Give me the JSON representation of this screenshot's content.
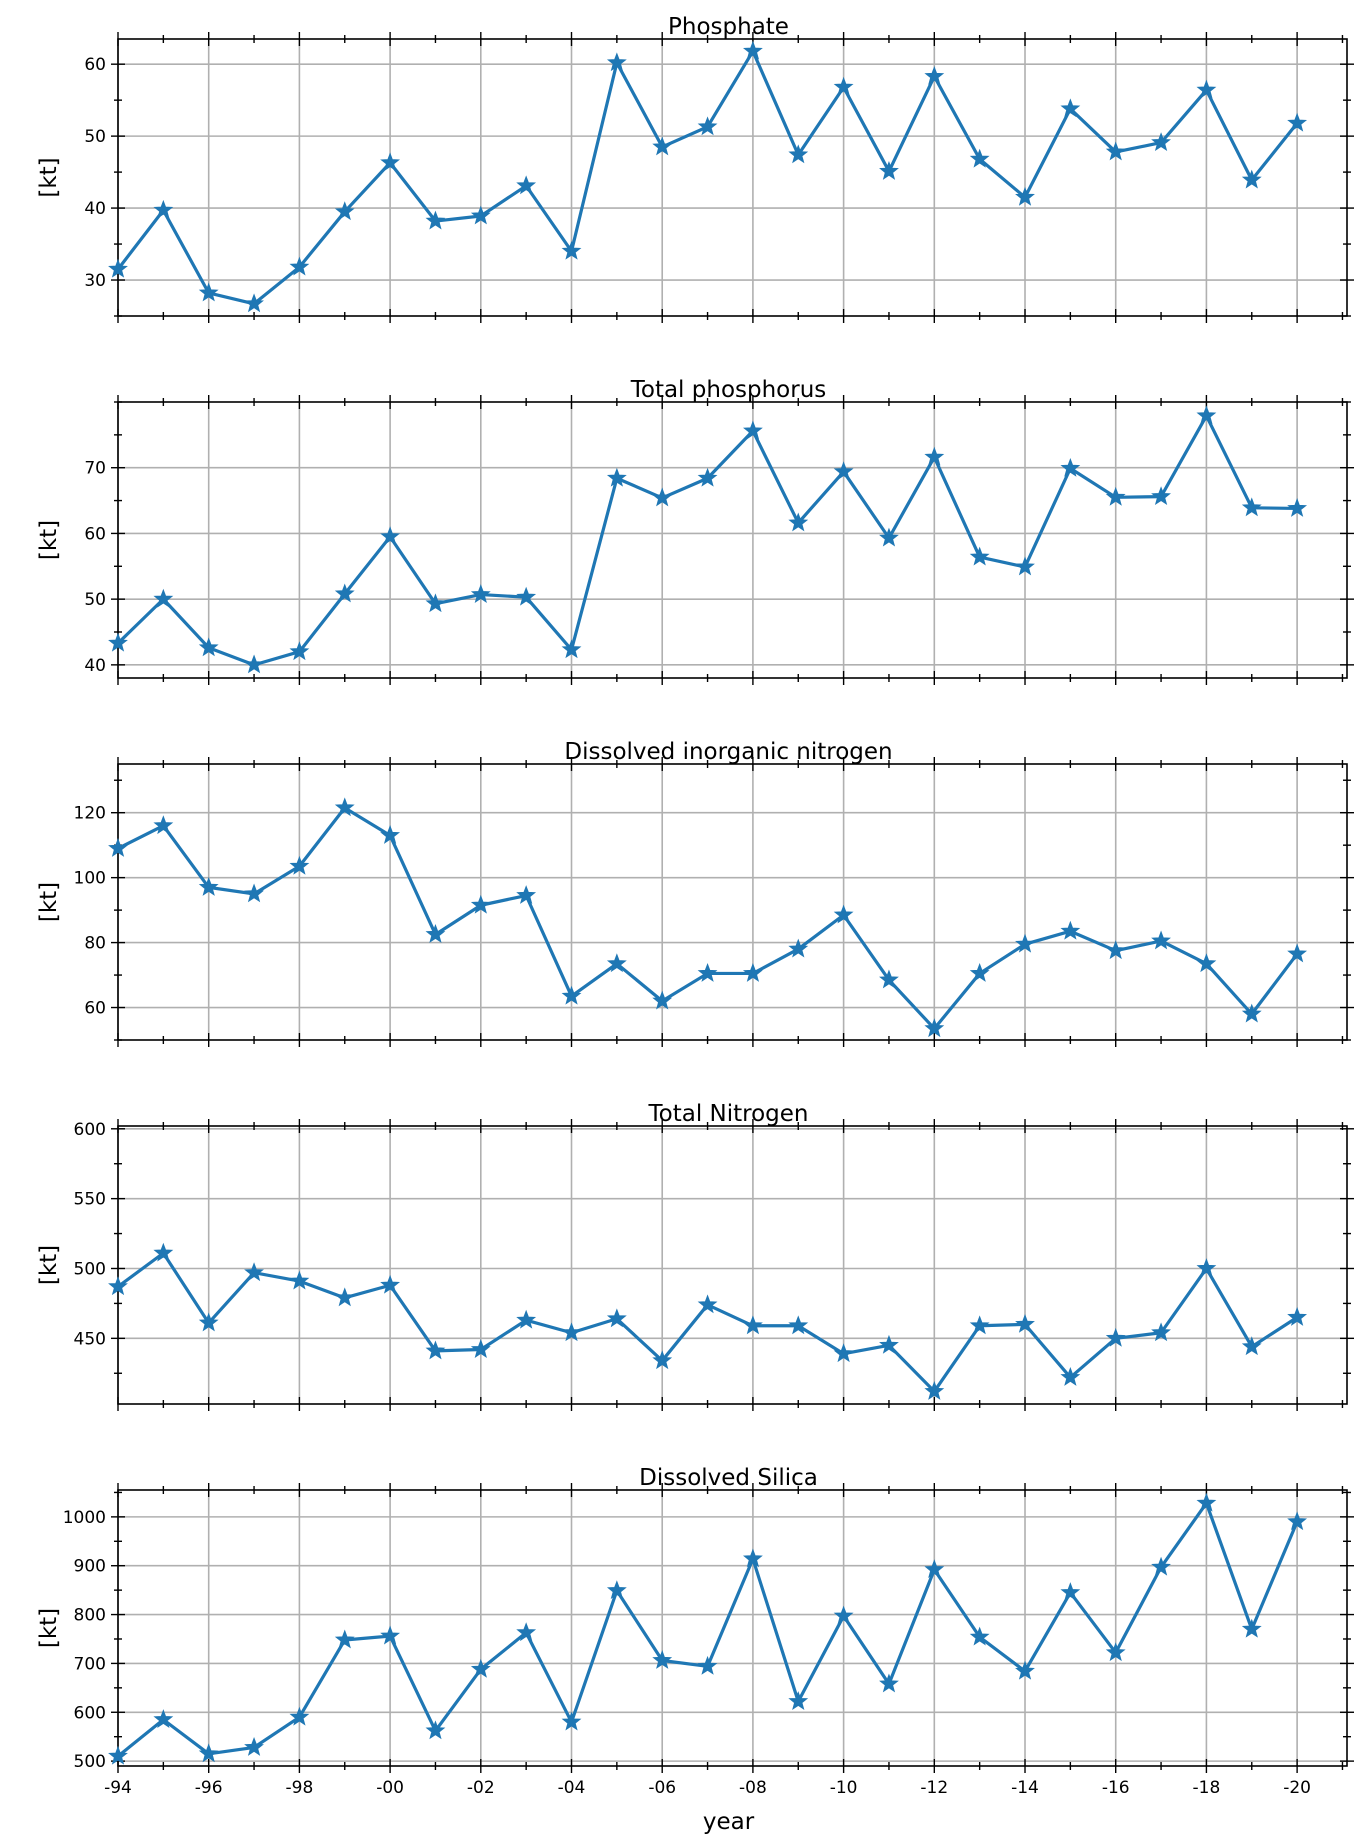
{
  "chart_data": [
    {
      "type": "line",
      "title": "Phosphate",
      "ylabel": "[kt]",
      "xlabel": "",
      "ylim": [
        25,
        63.5
      ],
      "yticks": [
        30,
        40,
        50,
        60
      ],
      "series": [
        {
          "values": [
            31.5,
            39.7,
            28.2,
            26.7,
            31.8,
            39.5,
            46.3,
            38.2,
            38.9,
            43.1,
            34.0,
            60.2,
            48.5,
            51.3,
            61.8,
            47.4,
            56.8,
            45.1,
            58.3,
            46.8,
            41.5,
            53.8,
            47.8,
            49.1,
            56.4,
            43.9,
            51.8
          ]
        }
      ]
    },
    {
      "type": "line",
      "title": "Total phosphorus",
      "ylabel": "[kt]",
      "xlabel": "",
      "ylim": [
        38,
        80
      ],
      "yticks": [
        40,
        50,
        60,
        70
      ],
      "series": [
        {
          "values": [
            43.3,
            50.0,
            42.6,
            40.0,
            42.0,
            50.8,
            59.5,
            49.3,
            50.7,
            50.3,
            42.3,
            68.4,
            65.4,
            68.4,
            75.6,
            61.6,
            69.4,
            59.3,
            71.6,
            56.4,
            54.9,
            69.9,
            65.5,
            65.6,
            77.9,
            63.9,
            63.8
          ]
        }
      ]
    },
    {
      "type": "line",
      "title": "Dissolved inorganic nitrogen",
      "ylabel": "[kt]",
      "xlabel": "",
      "ylim": [
        50,
        135
      ],
      "yticks": [
        60,
        80,
        100,
        120
      ],
      "series": [
        {
          "values": [
            109,
            116,
            97,
            95,
            103.5,
            121.5,
            113,
            82.5,
            91.5,
            94.5,
            63.5,
            73.5,
            62,
            70.5,
            70.5,
            78,
            88.5,
            68.5,
            53.5,
            70.5,
            79.5,
            83.5,
            77.5,
            80.5,
            73.5,
            58,
            76.5
          ]
        }
      ]
    },
    {
      "type": "line",
      "title": "Total Nitrogen",
      "ylabel": "[kt]",
      "xlabel": "",
      "ylim": [
        403,
        602
      ],
      "yticks": [
        450,
        500,
        550,
        600
      ],
      "series": [
        {
          "values": [
            487,
            511,
            461,
            497,
            491,
            479,
            488,
            441,
            442,
            463,
            454,
            464,
            434,
            474,
            459,
            459,
            439,
            445,
            412,
            459,
            460,
            422,
            450,
            454,
            500,
            444,
            465
          ]
        }
      ]
    },
    {
      "type": "line",
      "title": "Dissolved Silica",
      "ylabel": "[kt]",
      "xlabel": "year",
      "ylim": [
        490,
        1055
      ],
      "yticks": [
        500,
        600,
        700,
        800,
        900,
        1000
      ],
      "series": [
        {
          "values": [
            510,
            585,
            515,
            528,
            590,
            748,
            756,
            562,
            688,
            763,
            580,
            849,
            706,
            694,
            914,
            622,
            797,
            658,
            892,
            754,
            684,
            845,
            722,
            897,
            1028,
            770,
            990
          ]
        }
      ]
    }
  ],
  "x_tick_labels": [
    "-94",
    "-96",
    "-98",
    "-00",
    "-02",
    "-04",
    "-06",
    "-08",
    "-10",
    "-12",
    "-14",
    "-16",
    "-18",
    "-20"
  ],
  "x_start_year": 1994,
  "x_end_year": 2020,
  "x_range": [
    1994,
    2021.1
  ],
  "line_color": "#1f77b4",
  "grid": true,
  "marker": "star"
}
